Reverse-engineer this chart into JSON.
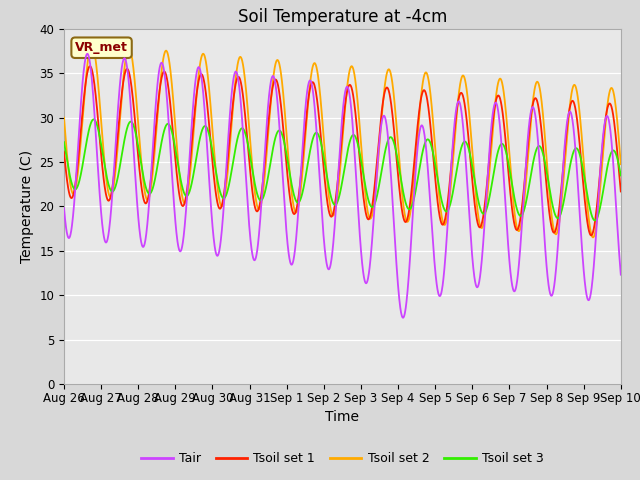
{
  "title": "Soil Temperature at -4cm",
  "xlabel": "Time",
  "ylabel": "Temperature (C)",
  "ylim": [
    0,
    40
  ],
  "yticks": [
    0,
    5,
    10,
    15,
    20,
    25,
    30,
    35,
    40
  ],
  "fig_bg_color": "#d8d8d8",
  "plot_bg_color": "#e8e8e8",
  "annotation_text": "VR_met",
  "annotation_bg": "#ffffcc",
  "annotation_border": "#8B6914",
  "line_colors": {
    "Tair": "#cc44ff",
    "Tsoil_set1": "#ff2200",
    "Tsoil_set2": "#ffaa00",
    "Tsoil_set3": "#33ee00"
  },
  "xtick_labels": [
    "Aug 26",
    "Aug 27",
    "Aug 28",
    "Aug 29",
    "Aug 30",
    "Aug 31",
    "Sep 1",
    "Sep 2",
    "Sep 3",
    "Sep 4",
    "Sep 5",
    "Sep 6",
    "Sep 7",
    "Sep 8",
    "Sep 9",
    "Sep 10"
  ],
  "title_fontsize": 12,
  "axis_fontsize": 10,
  "tick_fontsize": 8.5
}
